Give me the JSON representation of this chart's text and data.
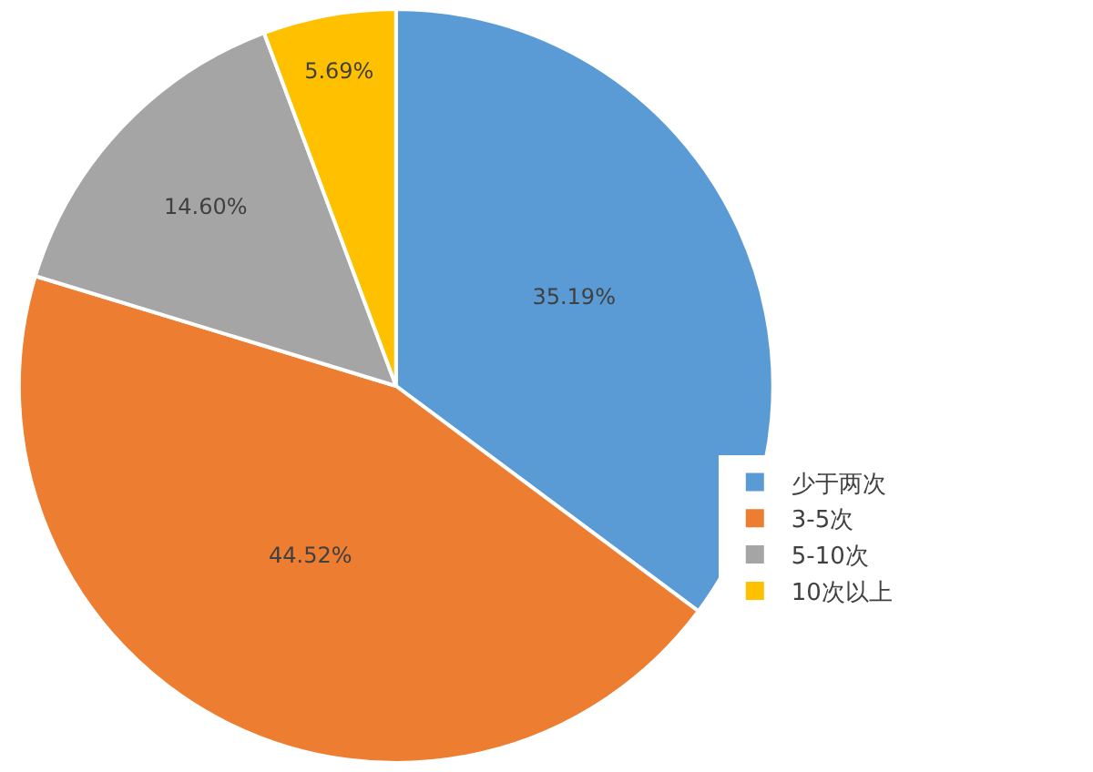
{
  "chart_data": {
    "type": "pie",
    "categories": [
      "少于两次",
      "3-5次",
      "5-10次",
      "10次以上"
    ],
    "values": [
      35.19,
      44.52,
      14.6,
      5.69
    ],
    "value_labels": [
      "35.19%",
      "44.52%",
      "14.60%",
      "5.69%"
    ],
    "colors": [
      "#5b9bd5",
      "#ed7d31",
      "#a5a5a5",
      "#ffc000"
    ],
    "legend": "right"
  }
}
